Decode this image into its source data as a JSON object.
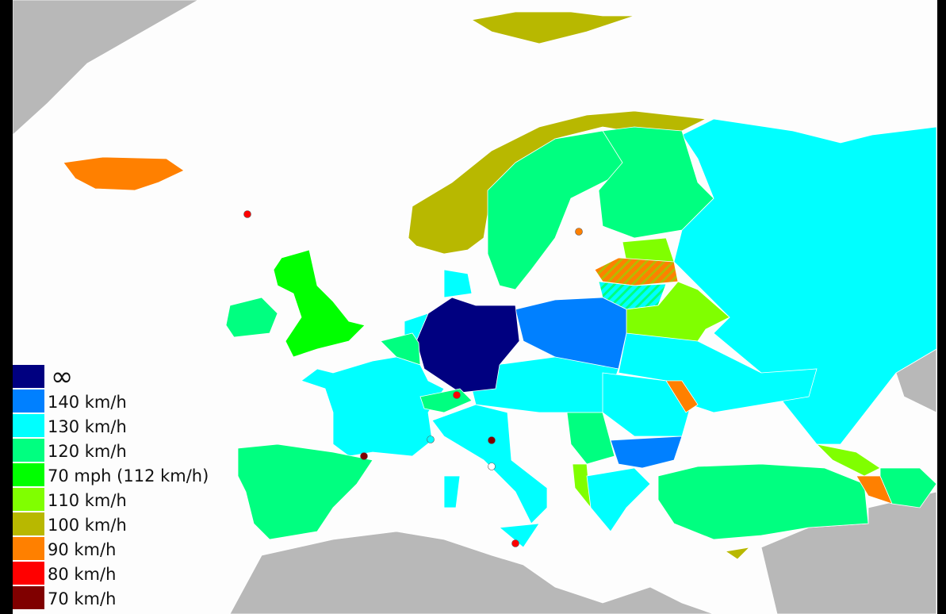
{
  "map": {
    "colors": {
      "unlimited": "#000080",
      "kmh140": "#0080ff",
      "kmh130": "#00ffff",
      "kmh120": "#00ff80",
      "mph70": "#00ff00",
      "kmh110": "#80ff00",
      "kmh100": "#b8b800",
      "kmh90": "#ff8000",
      "kmh80": "#ff0000",
      "kmh70": "#800000",
      "no_data": "#b8b8b8"
    }
  },
  "legend": {
    "items": [
      {
        "label": "∞",
        "color": "#000080"
      },
      {
        "label": "140 km/h",
        "color": "#0080ff"
      },
      {
        "label": "130 km/h",
        "color": "#00ffff"
      },
      {
        "label": "120 km/h",
        "color": "#00ff80"
      },
      {
        "label": "70 mph (112 km/h)",
        "color": "#00ff00"
      },
      {
        "label": "110 km/h",
        "color": "#80ff00"
      },
      {
        "label": "100 km/h",
        "color": "#b8b800"
      },
      {
        "label": "90 km/h",
        "color": "#ff8000"
      },
      {
        "label": "80 km/h",
        "color": "#ff0000"
      },
      {
        "label": "70 km/h",
        "color": "#800000"
      }
    ]
  }
}
